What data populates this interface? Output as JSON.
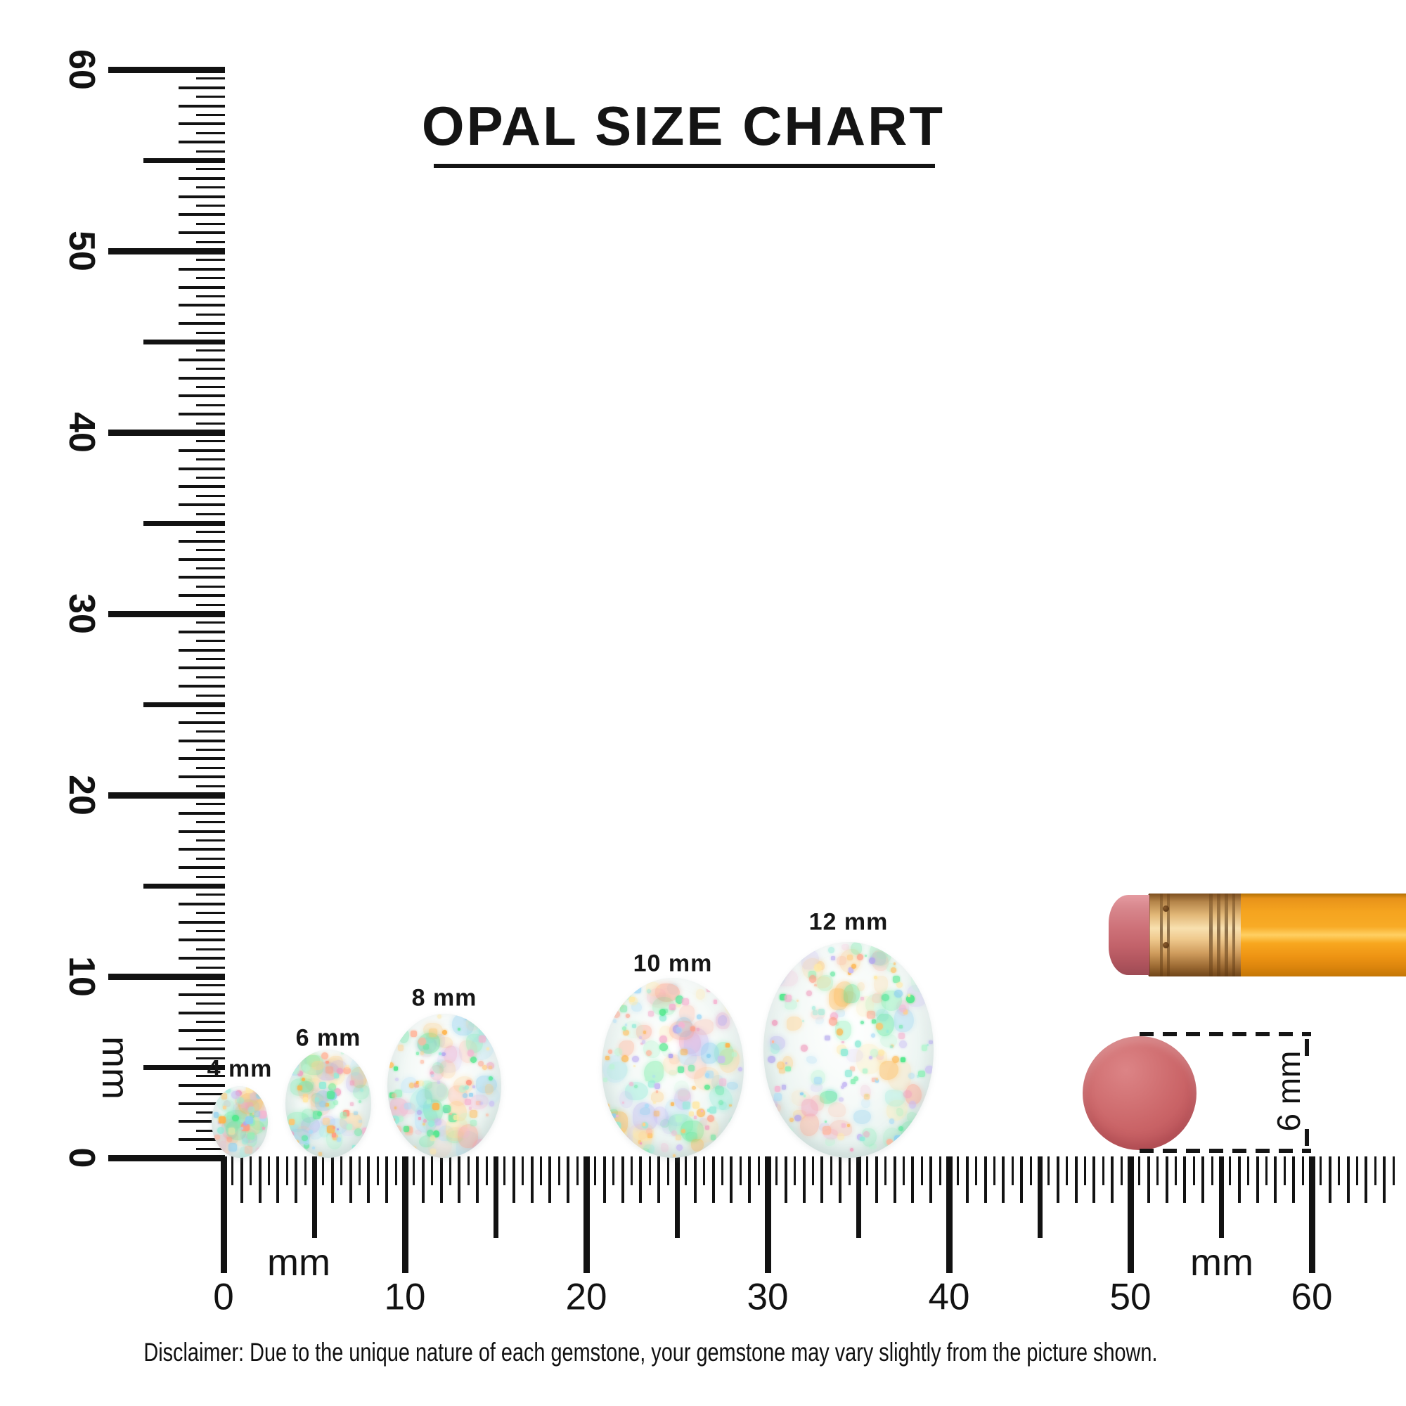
{
  "title": "OPAL SIZE CHART",
  "rulers": {
    "vertical": {
      "unit": "mm",
      "labels": [
        "0",
        "10",
        "20",
        "30",
        "40",
        "50",
        "60"
      ]
    },
    "horizontal": {
      "unit_left": "mm",
      "unit_right": "mm",
      "labels": [
        "0",
        "10",
        "20",
        "30",
        "40",
        "50",
        "60"
      ]
    }
  },
  "chart_data": {
    "type": "table",
    "title": "OPAL SIZE CHART",
    "unit": "mm",
    "ruler_range_mm": [
      0,
      60
    ],
    "opal_sizes_mm": [
      4,
      6,
      8,
      10,
      12
    ],
    "opal_labels": [
      "4 mm",
      "6 mm",
      "8 mm",
      "10 mm",
      "12 mm"
    ],
    "reference_object": "pencil eraser",
    "reference_size_label": "6 mm"
  },
  "opals": [
    {
      "label": "4 mm",
      "size_mm": 4
    },
    {
      "label": "6 mm",
      "size_mm": 6
    },
    {
      "label": "8 mm",
      "size_mm": 8
    },
    {
      "label": "10 mm",
      "size_mm": 10
    },
    {
      "label": "12 mm",
      "size_mm": 12
    }
  ],
  "eraser_comparison": {
    "measure_label": "6 mm"
  },
  "disclaimer": "Disclaimer: Due to the unique nature of each gemstone, your gemstone may vary slightly from the picture shown.",
  "colors": {
    "ink": "#141414",
    "pencil_body": "#f5a41f",
    "pencil_eraser": "#cd7178",
    "pencil_ferrule": "#e2b878",
    "eraser_disc": "#ca6467",
    "opal_base": "#e9f3f0"
  }
}
